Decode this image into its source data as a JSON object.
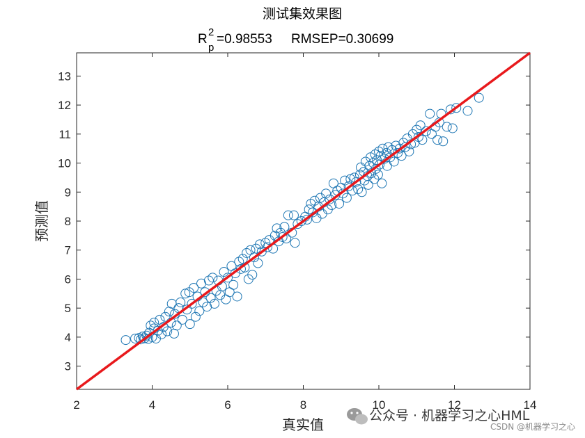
{
  "chart_data": {
    "type": "scatter",
    "title": "测试集效果图",
    "subtitle": {
      "r_symbol": "R",
      "r_sup": "2",
      "r_sub": "p",
      "r_value": "=0.98553",
      "rmsep": "RMSEP=0.30699"
    },
    "xlabel": "真实值",
    "ylabel": "预测值",
    "xlim": [
      2,
      14
    ],
    "ylim": [
      2.2,
      13.8
    ],
    "x_ticks": [
      2,
      4,
      6,
      8,
      10,
      12,
      14
    ],
    "y_ticks": [
      3,
      4,
      5,
      6,
      7,
      8,
      9,
      10,
      11,
      12,
      13
    ],
    "grid": false,
    "marker": "open-circle",
    "marker_color": "#1f77b4",
    "fit_line": {
      "color": "#e8191c",
      "from": [
        2,
        2.2
      ],
      "to": [
        14,
        13.8
      ]
    },
    "points": [
      [
        3.3,
        3.9
      ],
      [
        3.55,
        3.95
      ],
      [
        3.65,
        3.97
      ],
      [
        3.7,
        3.92
      ],
      [
        3.75,
        4.02
      ],
      [
        3.8,
        3.96
      ],
      [
        3.85,
        4.05
      ],
      [
        3.9,
        3.94
      ],
      [
        3.92,
        4.15
      ],
      [
        3.96,
        4.4
      ],
      [
        4.0,
        4.0
      ],
      [
        4.05,
        4.3
      ],
      [
        4.05,
        4.5
      ],
      [
        4.1,
        3.95
      ],
      [
        4.15,
        4.22
      ],
      [
        4.2,
        4.6
      ],
      [
        4.25,
        4.1
      ],
      [
        4.3,
        4.35
      ],
      [
        4.35,
        4.7
      ],
      [
        4.4,
        4.2
      ],
      [
        4.45,
        4.88
      ],
      [
        4.5,
        4.5
      ],
      [
        4.52,
        5.15
      ],
      [
        4.58,
        4.12
      ],
      [
        4.6,
        4.8
      ],
      [
        4.65,
        4.4
      ],
      [
        4.7,
        5.0
      ],
      [
        4.75,
        5.2
      ],
      [
        4.8,
        4.6
      ],
      [
        4.88,
        5.5
      ],
      [
        4.92,
        4.95
      ],
      [
        4.98,
        5.55
      ],
      [
        5.0,
        4.45
      ],
      [
        5.05,
        5.15
      ],
      [
        5.1,
        5.7
      ],
      [
        5.15,
        4.7
      ],
      [
        5.2,
        5.4
      ],
      [
        5.25,
        4.9
      ],
      [
        5.3,
        5.85
      ],
      [
        5.35,
        5.2
      ],
      [
        5.4,
        5.55
      ],
      [
        5.45,
        5.05
      ],
      [
        5.5,
        5.95
      ],
      [
        5.55,
        5.35
      ],
      [
        5.6,
        6.05
      ],
      [
        5.65,
        5.15
      ],
      [
        5.7,
        5.6
      ],
      [
        5.75,
        5.95
      ],
      [
        5.8,
        5.45
      ],
      [
        5.85,
        5.75
      ],
      [
        5.9,
        6.25
      ],
      [
        5.95,
        5.3
      ],
      [
        6.0,
        6.05
      ],
      [
        6.05,
        5.55
      ],
      [
        6.1,
        6.45
      ],
      [
        6.15,
        5.8
      ],
      [
        6.2,
        6.2
      ],
      [
        6.25,
        5.4
      ],
      [
        6.3,
        6.6
      ],
      [
        6.35,
        6.35
      ],
      [
        6.4,
        6.7
      ],
      [
        6.45,
        6.4
      ],
      [
        6.5,
        6.9
      ],
      [
        6.55,
        6.0
      ],
      [
        6.6,
        7.0
      ],
      [
        6.65,
        6.15
      ],
      [
        6.7,
        6.75
      ],
      [
        6.75,
        7.05
      ],
      [
        6.8,
        6.55
      ],
      [
        6.85,
        7.2
      ],
      [
        6.9,
        6.95
      ],
      [
        7.0,
        7.25
      ],
      [
        7.05,
        7.1
      ],
      [
        7.1,
        7.35
      ],
      [
        7.2,
        7.05
      ],
      [
        7.25,
        7.5
      ],
      [
        7.3,
        7.75
      ],
      [
        7.35,
        7.3
      ],
      [
        7.4,
        7.6
      ],
      [
        7.45,
        7.45
      ],
      [
        7.5,
        7.8
      ],
      [
        7.55,
        7.4
      ],
      [
        7.6,
        8.2
      ],
      [
        7.7,
        7.6
      ],
      [
        7.75,
        8.2
      ],
      [
        7.78,
        7.25
      ],
      [
        7.85,
        7.9
      ],
      [
        7.95,
        8.0
      ],
      [
        8.05,
        8.15
      ],
      [
        8.1,
        8.05
      ],
      [
        8.15,
        8.4
      ],
      [
        8.2,
        8.6
      ],
      [
        8.25,
        8.3
      ],
      [
        8.3,
        8.7
      ],
      [
        8.35,
        8.1
      ],
      [
        8.4,
        8.5
      ],
      [
        8.45,
        8.8
      ],
      [
        8.5,
        8.25
      ],
      [
        8.55,
        8.65
      ],
      [
        8.6,
        8.95
      ],
      [
        8.65,
        8.4
      ],
      [
        8.7,
        8.75
      ],
      [
        8.75,
        8.55
      ],
      [
        8.8,
        9.3
      ],
      [
        8.85,
        8.9
      ],
      [
        8.9,
        9.05
      ],
      [
        8.95,
        8.6
      ],
      [
        9.0,
        9.15
      ],
      [
        9.05,
        8.95
      ],
      [
        9.1,
        9.4
      ],
      [
        9.15,
        8.8
      ],
      [
        9.2,
        9.2
      ],
      [
        9.25,
        9.45
      ],
      [
        9.3,
        9.05
      ],
      [
        9.35,
        9.5
      ],
      [
        9.4,
        9.35
      ],
      [
        9.45,
        9.1
      ],
      [
        9.5,
        9.6
      ],
      [
        9.52,
        9.85
      ],
      [
        9.55,
        9.0
      ],
      [
        9.6,
        9.7
      ],
      [
        9.62,
        9.4
      ],
      [
        9.65,
        10.05
      ],
      [
        9.7,
        9.55
      ],
      [
        9.72,
        9.25
      ],
      [
        9.75,
        9.9
      ],
      [
        9.78,
        10.2
      ],
      [
        9.8,
        9.65
      ],
      [
        9.85,
        10.0
      ],
      [
        9.88,
        9.45
      ],
      [
        9.9,
        10.3
      ],
      [
        9.92,
        9.8
      ],
      [
        9.95,
        10.1
      ],
      [
        9.98,
        9.6
      ],
      [
        10.0,
        10.4
      ],
      [
        10.02,
        9.95
      ],
      [
        10.05,
        10.25
      ],
      [
        10.08,
        9.3
      ],
      [
        10.1,
        10.5
      ],
      [
        10.15,
        10.15
      ],
      [
        10.2,
        10.35
      ],
      [
        10.22,
        9.9
      ],
      [
        10.25,
        10.55
      ],
      [
        10.3,
        10.2
      ],
      [
        10.35,
        10.45
      ],
      [
        10.4,
        10.05
      ],
      [
        10.45,
        10.6
      ],
      [
        10.5,
        10.35
      ],
      [
        10.55,
        10.5
      ],
      [
        10.6,
        10.25
      ],
      [
        10.65,
        10.7
      ],
      [
        10.7,
        10.55
      ],
      [
        10.75,
        10.85
      ],
      [
        10.8,
        10.4
      ],
      [
        10.85,
        10.65
      ],
      [
        10.9,
        11.0
      ],
      [
        10.95,
        10.7
      ],
      [
        11.0,
        11.15
      ],
      [
        11.05,
        10.9
      ],
      [
        11.1,
        11.3
      ],
      [
        11.15,
        10.8
      ],
      [
        11.25,
        11.1
      ],
      [
        11.35,
        11.7
      ],
      [
        11.4,
        11.0
      ],
      [
        11.5,
        11.25
      ],
      [
        11.55,
        10.8
      ],
      [
        11.6,
        11.4
      ],
      [
        11.65,
        11.7
      ],
      [
        11.7,
        10.75
      ],
      [
        11.8,
        11.25
      ],
      [
        11.9,
        11.85
      ],
      [
        11.95,
        11.2
      ],
      [
        12.05,
        11.9
      ],
      [
        12.35,
        11.8
      ],
      [
        12.65,
        12.25
      ]
    ]
  },
  "watermark": {
    "main": "公众号 · 机器学习之心HML",
    "sub": "CSDN @机器学习之心"
  }
}
